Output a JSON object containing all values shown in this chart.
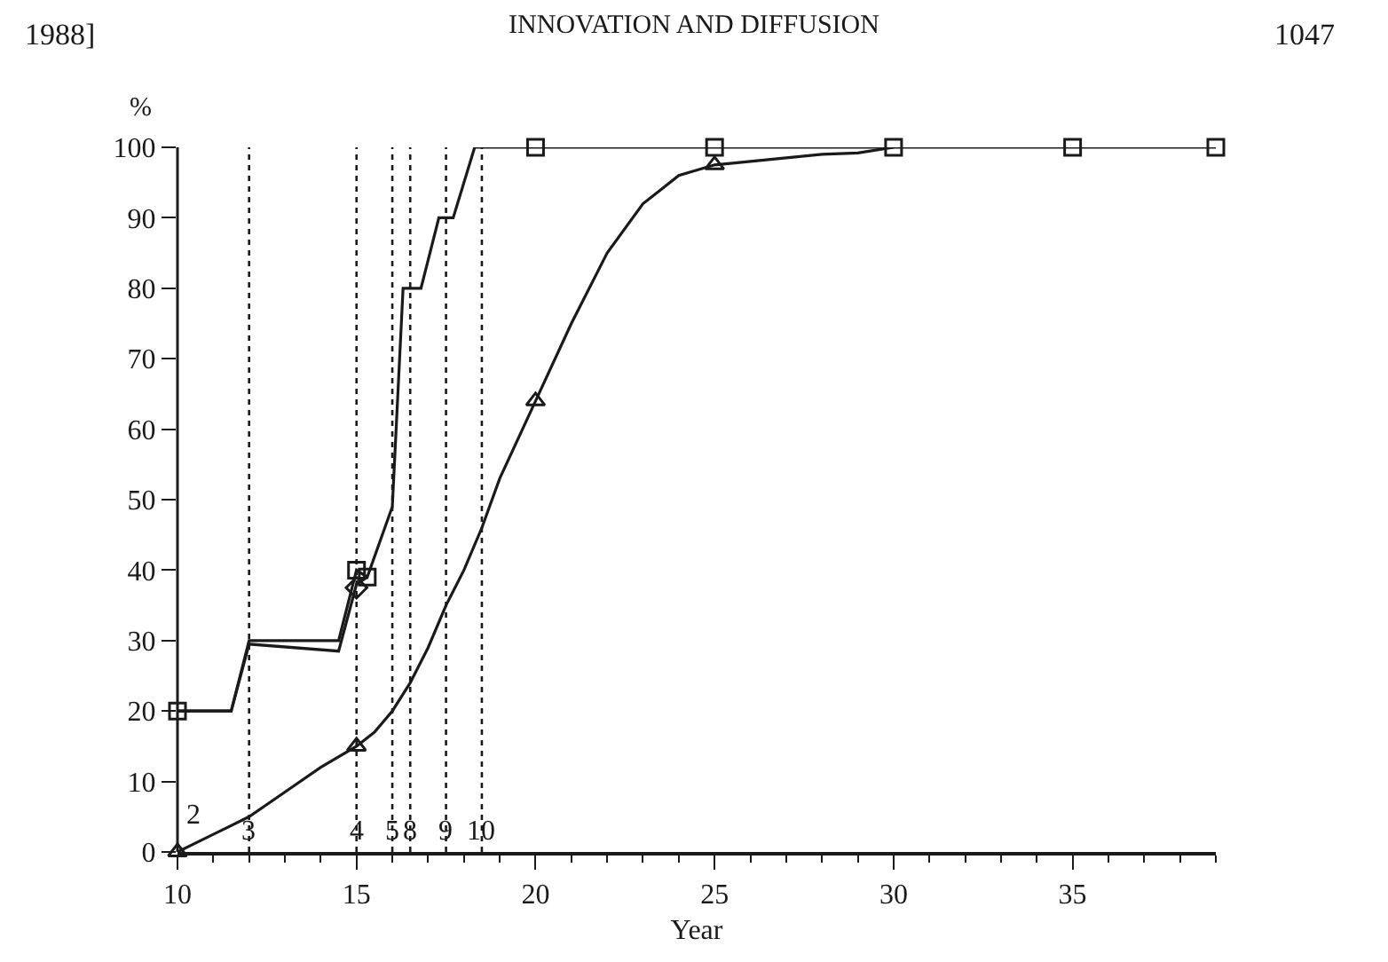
{
  "chart_data": {
    "type": "line",
    "title": "INNOVATION AND DIFFUSION",
    "xlabel": "Year",
    "ylabel": "%",
    "annotations": [
      "1988]",
      "1047",
      "2",
      {
        "text": "3",
        "x": 12,
        "y": 0
      },
      {
        "text": "4",
        "x": 15,
        "y": 0
      },
      {
        "text": "5",
        "x": 16,
        "y": 0
      },
      {
        "text": "8",
        "x": 16.5,
        "y": 0
      },
      {
        "text": "9",
        "x": 17.5,
        "y": 0
      },
      {
        "text": "10",
        "x": 18.5,
        "y": 0
      }
    ],
    "xlim": [
      10,
      39
    ],
    "xticks": [
      10,
      15,
      20,
      25,
      30,
      35
    ],
    "ylim": [
      0,
      100
    ],
    "yticks": [
      0,
      10,
      20,
      30,
      40,
      50,
      60,
      70,
      80,
      90,
      100
    ],
    "grid": false,
    "marker": "none",
    "line_style": "solid",
    "series": [
      {
        "type": "line",
        "color": "#1a1a1a",
        "x": [
          10,
          11.5,
          12,
          14.5,
          15,
          15.3,
          16,
          16.3,
          16.8,
          17.3,
          17.7,
          18.3,
          20,
          25,
          30,
          35,
          39
        ],
        "values": [
          20,
          20,
          30,
          30,
          40,
          39,
          49,
          80,
          80,
          90,
          90,
          100,
          100,
          100,
          100,
          100,
          100
        ]
      },
      {
        "type": "line",
        "color": "#1a1a1a",
        "x": [
          10,
          11.5,
          12,
          14.5,
          15,
          15.3
        ],
        "values": [
          20,
          20,
          29.5,
          28.5,
          38,
          39
        ]
      },
      {
        "type": "line",
        "color": "#1a1a1a",
        "x": [
          10,
          11,
          12,
          13,
          14,
          15,
          15.5,
          16,
          16.5,
          17,
          17.5,
          18,
          18.5,
          19,
          20,
          21,
          22,
          23,
          23.5,
          24,
          25,
          26,
          27,
          28,
          29,
          30
        ],
        "values": [
          0,
          2.5,
          5,
          8.5,
          12,
          15,
          17,
          20,
          24,
          29,
          35,
          40,
          46,
          53,
          64,
          75,
          85,
          92,
          94,
          96,
          97.5,
          98,
          98.5,
          99,
          99.2,
          100
        ]
      },
      {
        "type": "scatter",
        "marker": "square",
        "color": "#1a1a1a",
        "x": [
          10,
          15,
          15.3,
          20,
          25,
          30,
          35,
          39
        ],
        "values": [
          20,
          40,
          39,
          100,
          100,
          100,
          100,
          100
        ]
      },
      {
        "type": "scatter",
        "marker": "diamond",
        "color": "#1a1a1a",
        "x": [
          15
        ],
        "values": [
          37.5
        ]
      },
      {
        "type": "scatter",
        "marker": "triangle",
        "color": "#1a1a1a",
        "x": [
          10,
          15,
          20,
          25
        ],
        "values": [
          0,
          15,
          64,
          97.5
        ]
      }
    ],
    "ref_lines": [
      {
        "axis": "x",
        "value": 12,
        "line_style": "dotted"
      },
      {
        "axis": "x",
        "value": 15,
        "line_style": "dotted"
      },
      {
        "axis": "x",
        "value": 16,
        "line_style": "dotted"
      },
      {
        "axis": "x",
        "value": 16.5,
        "line_style": "dotted"
      },
      {
        "axis": "x",
        "value": 17.5,
        "line_style": "dotted"
      },
      {
        "axis": "x",
        "value": 18.5,
        "line_style": "dotted"
      }
    ]
  }
}
